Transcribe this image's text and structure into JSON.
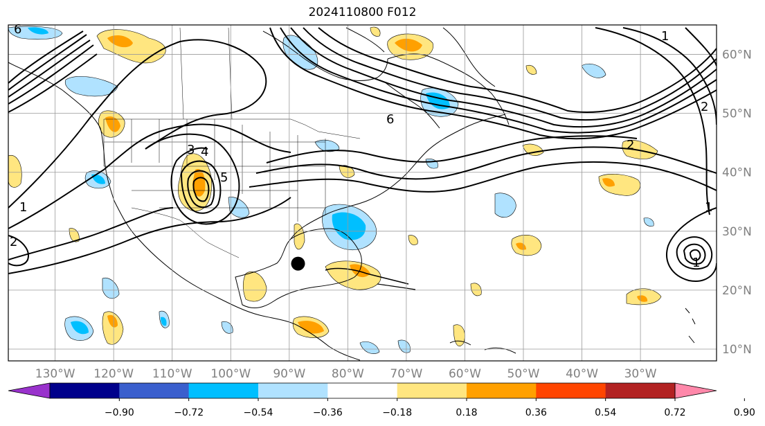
{
  "title": "2024110800 F012",
  "map": {
    "lon_range": [
      -138,
      -17
    ],
    "lat_range": [
      8,
      65
    ],
    "lon_ticks": [
      {
        "value": -130,
        "label": "130°W"
      },
      {
        "value": -120,
        "label": "120°W"
      },
      {
        "value": -110,
        "label": "110°W"
      },
      {
        "value": -100,
        "label": "100°W"
      },
      {
        "value": -90,
        "label": "90°W"
      },
      {
        "value": -80,
        "label": "80°W"
      },
      {
        "value": -70,
        "label": "70°W"
      },
      {
        "value": -60,
        "label": "60°W"
      },
      {
        "value": -50,
        "label": "50°W"
      },
      {
        "value": -40,
        "label": "40°W"
      },
      {
        "value": -30,
        "label": "30°W"
      }
    ],
    "lat_ticks": [
      {
        "value": 60,
        "label": "60°N"
      },
      {
        "value": 50,
        "label": "50°N"
      },
      {
        "value": 40,
        "label": "40°N"
      },
      {
        "value": 30,
        "label": "30°N"
      },
      {
        "value": 20,
        "label": "20°N"
      },
      {
        "value": 10,
        "label": "10°N"
      }
    ],
    "grid": true,
    "marker": {
      "lon": -88.5,
      "lat": 24.5,
      "color": "#000000"
    },
    "contour_labels": [
      "6",
      "3",
      "5",
      "4",
      "2",
      "2",
      "1",
      "1",
      "1",
      "2",
      "6",
      "1"
    ]
  },
  "colorbar": {
    "labels": [
      "−0.90",
      "−0.72",
      "−0.54",
      "−0.36",
      "−0.18",
      "0.18",
      "0.36",
      "0.54",
      "0.72",
      "0.90"
    ],
    "colors": [
      "#9932cc",
      "#00008b",
      "#3a5fcd",
      "#00bfff",
      "#b0e2ff",
      "#ffffff",
      "#ffe680",
      "#ffa000",
      "#ff4500",
      "#b22222",
      "#ff88aa"
    ]
  }
}
